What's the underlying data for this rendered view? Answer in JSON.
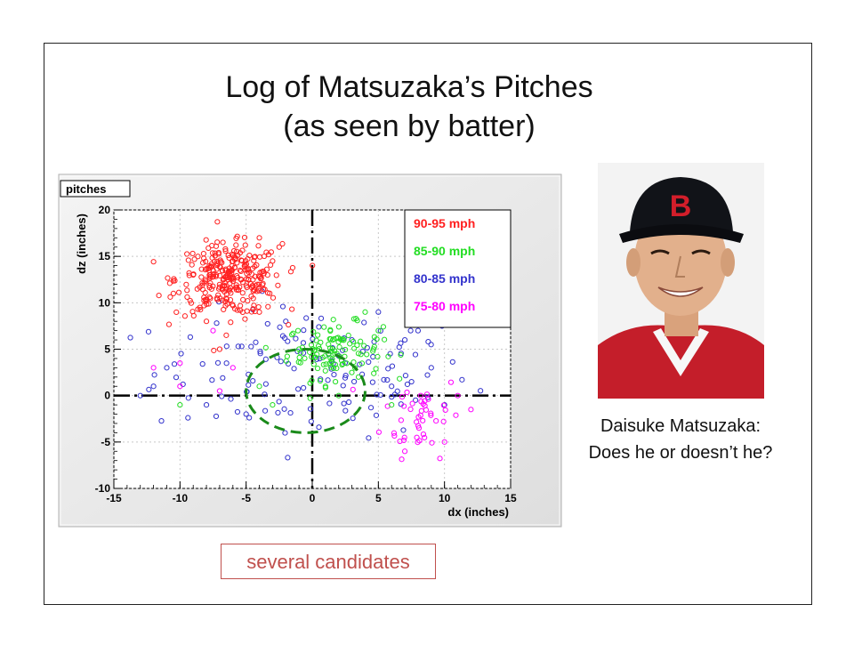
{
  "slide": {
    "title_line1": "Log of Matsuzaka’s  Pitches",
    "title_line2": "(as seen by batter)",
    "caption_line1": "Daisuke Matsuzaka:",
    "caption_line2": "Does he or doesn’t he?",
    "candidates_label": "several candidates"
  },
  "photo": {
    "alt": "Daisuke Matsuzaka",
    "cap_logo": "B"
  },
  "chart_data": {
    "type": "scatter",
    "title": "pitches",
    "xlabel": "dx (inches)",
    "ylabel": "dz (inches)",
    "xlim": [
      -15,
      15
    ],
    "ylim": [
      -10,
      20
    ],
    "xticks": [
      -15,
      -10,
      -5,
      0,
      5,
      10,
      15
    ],
    "yticks": [
      -10,
      -5,
      0,
      5,
      10,
      15,
      20
    ],
    "grid": true,
    "legend_position": "top-right",
    "dashed_axes_at_zero": true,
    "strike_zone_circle": {
      "center": [
        -0.5,
        0.5
      ],
      "radius": 4.5,
      "color": "#1a8a1a"
    },
    "series": [
      {
        "name": "90-95 mph",
        "color": "#ff2020",
        "center": [
          -6.3,
          12.5
        ],
        "spread": [
          2.0,
          1.9
        ],
        "count": 300,
        "extra_points": [
          [
            -6.5,
            6.5
          ],
          [
            -8,
            8
          ],
          [
            -10.5,
            11
          ],
          [
            -8.5,
            9.5
          ],
          [
            -2.5,
            16
          ],
          [
            -4,
            17
          ],
          [
            -7,
            5
          ],
          [
            -9,
            13
          ],
          [
            -3,
            14.5
          ],
          [
            -4,
            9
          ]
        ]
      },
      {
        "name": "85-90 mph",
        "color": "#22dd22",
        "center": [
          1.7,
          4.8
        ],
        "spread": [
          1.8,
          1.5
        ],
        "count": 110,
        "extra_points": [
          [
            -10,
            -1
          ],
          [
            -3,
            -1
          ],
          [
            -4,
            1
          ],
          [
            1,
            1
          ],
          [
            3.5,
            2
          ],
          [
            5,
            7
          ],
          [
            6,
            -1
          ],
          [
            4,
            9
          ],
          [
            -1,
            5
          ],
          [
            2,
            0
          ]
        ]
      },
      {
        "name": "80-85 mph",
        "color": "#3333cc",
        "center": [
          0,
          2.5
        ],
        "spread": [
          6,
          3.5
        ],
        "count": 140,
        "extra_points": [
          [
            -11,
            3
          ],
          [
            -12,
            1
          ],
          [
            -13,
            0
          ],
          [
            8,
            7
          ],
          [
            9,
            3
          ],
          [
            -5,
            -2
          ],
          [
            -8,
            -1
          ],
          [
            6,
            1
          ],
          [
            10,
            -1
          ],
          [
            3,
            6
          ],
          [
            -2,
            8
          ],
          [
            5,
            9
          ],
          [
            7,
            6
          ]
        ]
      },
      {
        "name": "75-80 mph",
        "color": "#ff00ff",
        "center": [
          8.3,
          -2
        ],
        "spread": [
          1.5,
          2.3
        ],
        "count": 45,
        "extra_points": [
          [
            -12,
            3
          ],
          [
            -10,
            3.5
          ],
          [
            -7,
            0.5
          ],
          [
            -10,
            1
          ],
          [
            12,
            -1.5
          ],
          [
            10,
            -5
          ],
          [
            7,
            -6
          ],
          [
            -7.5,
            7
          ],
          [
            -6,
            3
          ],
          [
            11,
            0
          ]
        ]
      }
    ]
  }
}
